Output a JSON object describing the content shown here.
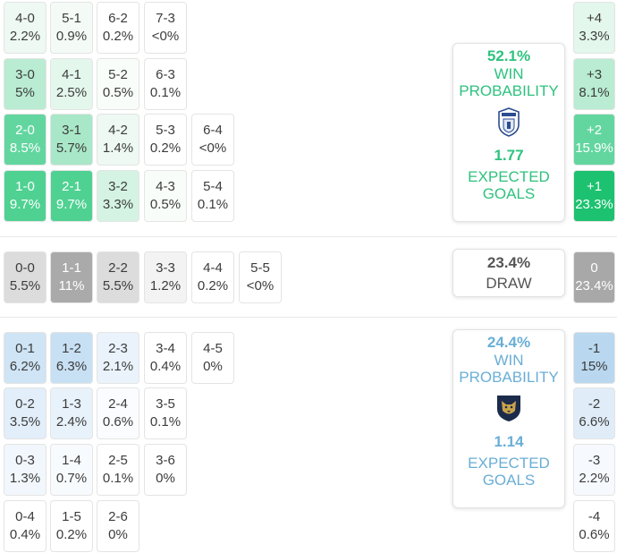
{
  "colors": {
    "home_accent": "#2ec27e",
    "away_accent": "#6aaed6",
    "draw_text": "#555555"
  },
  "home": {
    "win_pct": "52.1%",
    "win_label": "WIN\nPROBABILITY",
    "xg": "1.77",
    "xg_label": "EXPECTED\nGOALS",
    "logo_icon": "pachuca-crest-icon"
  },
  "draw": {
    "pct": "23.4%",
    "label": "DRAW"
  },
  "away": {
    "win_pct": "24.4%",
    "win_label": "WIN\nPROBABILITY",
    "xg": "1.14",
    "xg_label": "EXPECTED\nGOALS",
    "logo_icon": "pumas-crest-icon"
  },
  "home_scores": [
    [
      {
        "s": "4-0",
        "p": "2.2%",
        "c": "#eef9f3"
      },
      {
        "s": "5-1",
        "p": "0.9%",
        "c": "#f4fbf7"
      },
      {
        "s": "6-2",
        "p": "0.2%",
        "c": "#ffffff"
      },
      {
        "s": "7-3",
        "p": "<0%",
        "c": "#ffffff"
      }
    ],
    [
      {
        "s": "3-0",
        "p": "5%",
        "c": "#b9ecd2"
      },
      {
        "s": "4-1",
        "p": "2.5%",
        "c": "#e4f7ec"
      },
      {
        "s": "5-2",
        "p": "0.5%",
        "c": "#f8fdfa"
      },
      {
        "s": "6-3",
        "p": "0.1%",
        "c": "#ffffff"
      }
    ],
    [
      {
        "s": "2-0",
        "p": "8.5%",
        "c": "#63d6a0"
      },
      {
        "s": "3-1",
        "p": "5.7%",
        "c": "#a8e7c7"
      },
      {
        "s": "4-2",
        "p": "1.4%",
        "c": "#edf9f2"
      },
      {
        "s": "5-3",
        "p": "0.2%",
        "c": "#ffffff"
      },
      {
        "s": "6-4",
        "p": "<0%",
        "c": "#ffffff"
      }
    ],
    [
      {
        "s": "1-0",
        "p": "9.7%",
        "c": "#4fd192"
      },
      {
        "s": "2-1",
        "p": "9.7%",
        "c": "#4fd192"
      },
      {
        "s": "3-2",
        "p": "3.3%",
        "c": "#d4f3e2"
      },
      {
        "s": "4-3",
        "p": "0.5%",
        "c": "#f8fdfa"
      },
      {
        "s": "5-4",
        "p": "0.1%",
        "c": "#ffffff"
      }
    ]
  ],
  "draw_scores": [
    {
      "s": "0-0",
      "p": "5.5%",
      "c": "#dcdcdc"
    },
    {
      "s": "1-1",
      "p": "11%",
      "c": "#aaaaaa"
    },
    {
      "s": "2-2",
      "p": "5.5%",
      "c": "#dcdcdc"
    },
    {
      "s": "3-3",
      "p": "1.2%",
      "c": "#f3f3f3"
    },
    {
      "s": "4-4",
      "p": "0.2%",
      "c": "#ffffff"
    },
    {
      "s": "5-5",
      "p": "<0%",
      "c": "#ffffff"
    }
  ],
  "away_scores": [
    [
      {
        "s": "0-1",
        "p": "6.2%",
        "c": "#cfe4f5"
      },
      {
        "s": "1-2",
        "p": "6.3%",
        "c": "#c8e0f3"
      },
      {
        "s": "2-3",
        "p": "2.1%",
        "c": "#eaf3fb"
      },
      {
        "s": "3-4",
        "p": "0.4%",
        "c": "#ffffff"
      },
      {
        "s": "4-5",
        "p": "0%",
        "c": "#ffffff"
      }
    ],
    [
      {
        "s": "0-2",
        "p": "3.5%",
        "c": "#e2eef9"
      },
      {
        "s": "1-3",
        "p": "2.4%",
        "c": "#e8f2fb"
      },
      {
        "s": "2-4",
        "p": "0.6%",
        "c": "#fafcff"
      },
      {
        "s": "3-5",
        "p": "0.1%",
        "c": "#ffffff"
      }
    ],
    [
      {
        "s": "0-3",
        "p": "1.3%",
        "c": "#f1f7fc"
      },
      {
        "s": "1-4",
        "p": "0.7%",
        "c": "#f8fbfe"
      },
      {
        "s": "2-5",
        "p": "0.1%",
        "c": "#ffffff"
      },
      {
        "s": "3-6",
        "p": "0%",
        "c": "#ffffff"
      }
    ],
    [
      {
        "s": "0-4",
        "p": "0.4%",
        "c": "#ffffff"
      },
      {
        "s": "1-5",
        "p": "0.2%",
        "c": "#ffffff"
      },
      {
        "s": "2-6",
        "p": "0%",
        "c": "#ffffff"
      }
    ]
  ],
  "margins_home": [
    {
      "s": "+4",
      "p": "3.3%",
      "c": "#e3f7ec"
    },
    {
      "s": "+3",
      "p": "8.1%",
      "c": "#b9ecd2"
    },
    {
      "s": "+2",
      "p": "15.9%",
      "c": "#63d6a0"
    },
    {
      "s": "+1",
      "p": "23.3%",
      "c": "#1cc26f"
    }
  ],
  "margin_draw": {
    "s": "0",
    "p": "23.4%",
    "c": "#a8a8a8"
  },
  "margins_away": [
    {
      "s": "-1",
      "p": "15%",
      "c": "#b9d8f0"
    },
    {
      "s": "-2",
      "p": "6.6%",
      "c": "#e0edf8"
    },
    {
      "s": "-3",
      "p": "2.2%",
      "c": "#f6f9fd"
    },
    {
      "s": "-4",
      "p": "0.6%",
      "c": "#ffffff"
    }
  ]
}
